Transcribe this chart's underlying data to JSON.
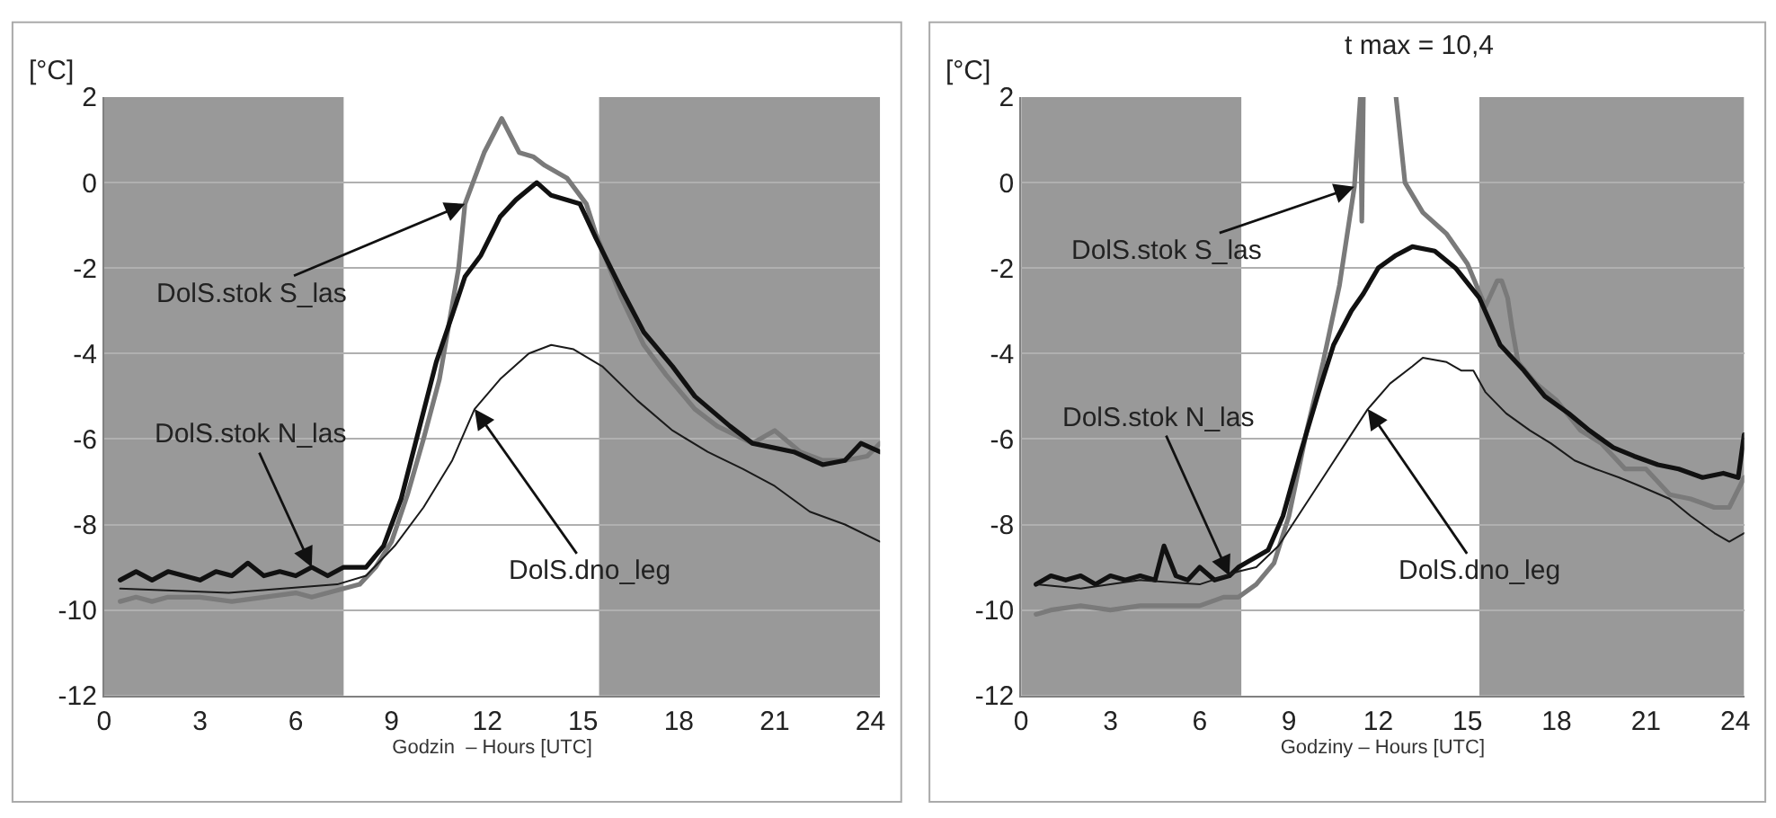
{
  "chart_data": [
    {
      "type": "line",
      "xlabel": "Godzin  – Hours [UTC]",
      "ylabel": "[°C]",
      "xlim": [
        0,
        24.3
      ],
      "ylim": [
        -12,
        2
      ],
      "xticks": [
        0,
        3,
        6,
        9,
        12,
        15,
        18,
        21,
        24
      ],
      "yticks": [
        -12,
        -10,
        -8,
        -6,
        -4,
        -2,
        0,
        2
      ],
      "grid": "y",
      "marker": "none",
      "line_style": "solid",
      "bands": [
        {
          "axis": "x",
          "from": 0,
          "to": 7.5,
          "color": "#999999"
        },
        {
          "axis": "x",
          "from": 15.5,
          "to": 24.3,
          "color": "#999999"
        }
      ],
      "annotations": [
        {
          "text": "DolS.stok S_las",
          "x": 11.3,
          "y": -0.5
        },
        {
          "text": "DolS.stok N_las",
          "x": 6.5,
          "y": -9.0
        },
        {
          "text": "DolS.dno_leg",
          "x": 11.6,
          "y": -5.3
        }
      ],
      "series": [
        {
          "color": "#7a7a7a",
          "x": [
            0.5,
            1,
            1.5,
            2,
            3,
            4,
            5,
            6,
            6.5,
            7,
            7.5,
            8,
            8.5,
            9,
            9.5,
            10,
            10.5,
            11.1,
            11.3,
            11.9,
            12.45,
            13.0,
            13.45,
            13.8,
            14.5,
            15.1,
            15.4,
            16.2,
            16.9,
            17.6,
            18.5,
            19.2,
            20.3,
            21.0,
            21.8,
            22.5,
            23.2,
            23.9,
            24.3
          ],
          "values": [
            -9.8,
            -9.7,
            -9.8,
            -9.7,
            -9.7,
            -9.8,
            -9.7,
            -9.6,
            -9.7,
            -9.6,
            -9.5,
            -9.4,
            -9.0,
            -8.4,
            -7.3,
            -6.0,
            -4.6,
            -2.0,
            -0.5,
            0.7,
            1.5,
            0.7,
            0.6,
            0.4,
            0.1,
            -0.5,
            -1.2,
            -2.7,
            -3.8,
            -4.5,
            -5.3,
            -5.7,
            -6.1,
            -5.8,
            -6.3,
            -6.5,
            -6.5,
            -6.4,
            -6.1
          ]
        },
        {
          "color": "#111111",
          "x": [
            0.5,
            1,
            1.5,
            2,
            2.5,
            3,
            3.5,
            4,
            4.5,
            5,
            5.5,
            6,
            6.5,
            7,
            7.5,
            8.2,
            8.75,
            9.3,
            9.85,
            10.4,
            10.9,
            11.3,
            11.8,
            12.4,
            12.9,
            13.55,
            14.0,
            14.9,
            15.4,
            16.2,
            16.9,
            17.8,
            18.5,
            19.6,
            20.3,
            21.6,
            22.5,
            23.2,
            23.7,
            24.3
          ],
          "values": [
            -9.3,
            -9.1,
            -9.3,
            -9.1,
            -9.2,
            -9.3,
            -9.1,
            -9.2,
            -8.9,
            -9.2,
            -9.1,
            -9.2,
            -9.0,
            -9.2,
            -9.0,
            -9.0,
            -8.5,
            -7.4,
            -5.8,
            -4.2,
            -3.1,
            -2.2,
            -1.7,
            -0.8,
            -0.4,
            0.0,
            -0.3,
            -0.5,
            -1.3,
            -2.5,
            -3.5,
            -4.3,
            -5.0,
            -5.7,
            -6.1,
            -6.3,
            -6.6,
            -6.5,
            -6.1,
            -6.3
          ]
        },
        {
          "color": "#1a1a1a",
          "x": [
            0.5,
            3.9,
            7.3,
            8.2,
            9.1,
            10.0,
            10.9,
            11.6,
            12.4,
            13.3,
            14.0,
            14.7,
            15.6,
            16.7,
            17.8,
            18.9,
            20.0,
            21.0,
            22.1,
            23.2,
            24.3
          ],
          "values": [
            -9.5,
            -9.6,
            -9.4,
            -9.2,
            -8.5,
            -7.6,
            -6.5,
            -5.3,
            -4.6,
            -4.0,
            -3.8,
            -3.9,
            -4.3,
            -5.1,
            -5.8,
            -6.3,
            -6.7,
            -7.1,
            -7.7,
            -8.0,
            -8.4
          ]
        }
      ]
    },
    {
      "type": "line",
      "xlabel": "Godziny – Hours [UTC]",
      "ylabel": "[°C]",
      "xlim": [
        0,
        24.3
      ],
      "ylim": [
        -12,
        2
      ],
      "xticks": [
        0,
        3,
        6,
        9,
        12,
        15,
        18,
        21,
        24
      ],
      "yticks": [
        -12,
        -10,
        -8,
        -6,
        -4,
        -2,
        0,
        2
      ],
      "grid": "y",
      "marker": "none",
      "line_style": "solid",
      "bands": [
        {
          "axis": "x",
          "from": 0,
          "to": 7.4,
          "color": "#999999"
        },
        {
          "axis": "x",
          "from": 15.4,
          "to": 24.3,
          "color": "#999999"
        }
      ],
      "annotations": [
        "t max = 10,4",
        {
          "text": "DolS.stok S_las",
          "x": 11.2,
          "y": -0.1
        },
        {
          "text": "DolS.stok N_las",
          "x": 7.0,
          "y": -9.2
        },
        {
          "text": "DolS.dno_leg",
          "x": 11.65,
          "y": -5.3
        }
      ],
      "series": [
        {
          "color": "#7a7a7a",
          "x": [
            0.5,
            1,
            2,
            3,
            4,
            5,
            6,
            6.8,
            7.3,
            7.9,
            8.5,
            9.0,
            9.6,
            10.15,
            10.7,
            11.2,
            11.4,
            11.45,
            11.5,
            12.0,
            12.6,
            12.9,
            13.5,
            14.3,
            15.0,
            15.6,
            15.8,
            16.0,
            16.15,
            16.35,
            16.5,
            16.7,
            17.3,
            18.0,
            18.8,
            19.5,
            20.3,
            21.0,
            21.8,
            22.5,
            23.3,
            23.8,
            24.3
          ],
          "values": [
            -10.1,
            -10.0,
            -9.9,
            -10.0,
            -9.9,
            -9.9,
            -9.9,
            -9.7,
            -9.7,
            -9.4,
            -8.9,
            -7.8,
            -5.8,
            -4.2,
            -2.4,
            -0.1,
            2.0,
            -0.9,
            2.0,
            null,
            2.0,
            0.0,
            -0.7,
            -1.2,
            -1.9,
            -2.9,
            -2.6,
            -2.3,
            -2.3,
            -2.7,
            -3.4,
            -4.2,
            -4.7,
            -5.1,
            -5.8,
            -6.1,
            -6.7,
            -6.7,
            -7.3,
            -7.4,
            -7.6,
            -7.6,
            -6.9
          ]
        },
        {
          "color": "#111111",
          "x": [
            0.5,
            1,
            1.5,
            2,
            2.5,
            3,
            3.5,
            4,
            4.5,
            4.8,
            5.2,
            5.6,
            6,
            6.5,
            7,
            7.3,
            8.3,
            8.8,
            9.4,
            10.0,
            10.5,
            11.1,
            11.5,
            12.0,
            12.6,
            13.15,
            13.9,
            14.6,
            15.4,
            16.1,
            16.9,
            17.6,
            18.4,
            19.1,
            19.9,
            20.6,
            21.4,
            22.1,
            22.9,
            23.6,
            24.1,
            24.3
          ],
          "values": [
            -9.4,
            -9.2,
            -9.3,
            -9.2,
            -9.4,
            -9.2,
            -9.3,
            -9.2,
            -9.3,
            -8.5,
            -9.2,
            -9.3,
            -9.0,
            -9.3,
            -9.2,
            -9.0,
            -8.6,
            -7.8,
            -6.3,
            -4.9,
            -3.8,
            -3.0,
            -2.6,
            -2.0,
            -1.7,
            -1.5,
            -1.6,
            -2.0,
            -2.7,
            -3.8,
            -4.4,
            -5.0,
            -5.4,
            -5.8,
            -6.2,
            -6.4,
            -6.6,
            -6.7,
            -6.9,
            -6.8,
            -6.9,
            -5.9
          ]
        },
        {
          "color": "#1a1a1a",
          "x": [
            0.5,
            2,
            4,
            6,
            7.3,
            7.9,
            8.65,
            9.4,
            10.15,
            10.9,
            11.65,
            12.4,
            13.15,
            13.5,
            14.3,
            14.8,
            15.2,
            15.6,
            16.3,
            17.1,
            17.8,
            18.6,
            19.3,
            20.1,
            20.8,
            21.8,
            22.5,
            23.3,
            23.8,
            24.3
          ],
          "values": [
            -9.4,
            -9.5,
            -9.3,
            -9.4,
            -9.1,
            -9.0,
            -8.5,
            -7.7,
            -6.9,
            -6.1,
            -5.3,
            -4.7,
            -4.3,
            -4.1,
            -4.2,
            -4.4,
            -4.4,
            -4.9,
            -5.4,
            -5.8,
            -6.1,
            -6.5,
            -6.7,
            -6.9,
            -7.1,
            -7.4,
            -7.8,
            -8.2,
            -8.4,
            -8.2
          ]
        }
      ]
    }
  ]
}
